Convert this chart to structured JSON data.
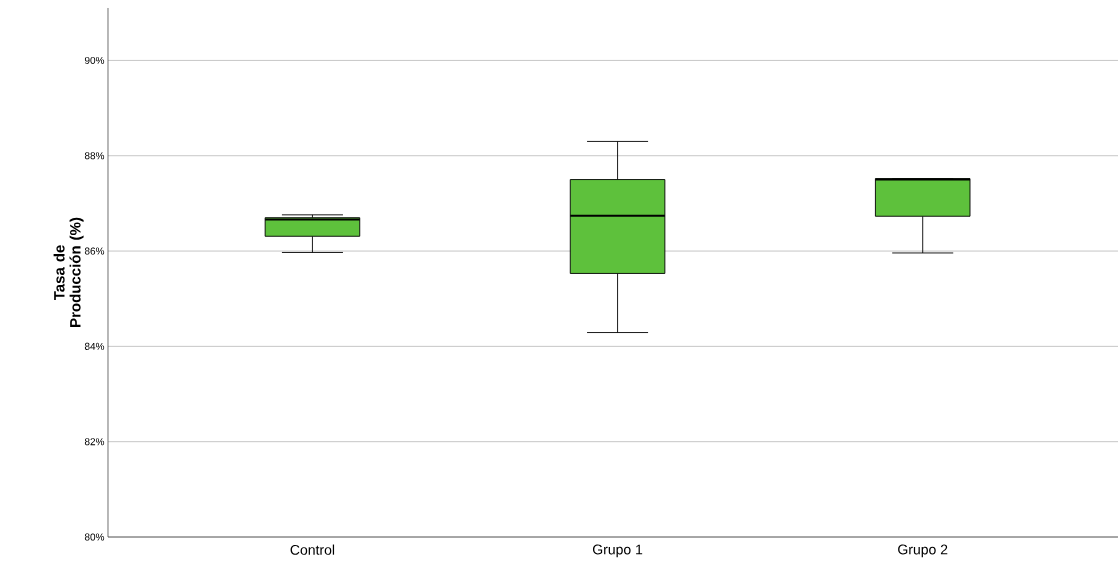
{
  "chart_data": {
    "type": "box",
    "ylabel": "Tasa de Producción (%)",
    "categories": [
      "Control",
      "Grupo 1",
      "Grupo 2"
    ],
    "color": "#5ec13c",
    "boxes": [
      {
        "low": 85.97,
        "q1": 86.31,
        "median": 86.66,
        "q3": 86.7,
        "high": 86.76
      },
      {
        "low": 84.29,
        "q1": 85.53,
        "median": 86.74,
        "q3": 87.5,
        "high": 88.3
      },
      {
        "low": 85.96,
        "q1": 86.73,
        "median": 87.5,
        "q3": 87.52,
        "high": 87.52
      }
    ],
    "ylim": [
      80,
      91.1
    ],
    "yticks": [
      {
        "value": 80,
        "label": "80%"
      },
      {
        "value": 82,
        "label": "82%"
      },
      {
        "value": 84,
        "label": "84%"
      },
      {
        "value": 86,
        "label": "86%"
      },
      {
        "value": 88,
        "label": "88%"
      },
      {
        "value": 90,
        "label": "90%"
      }
    ],
    "grid": "y"
  }
}
